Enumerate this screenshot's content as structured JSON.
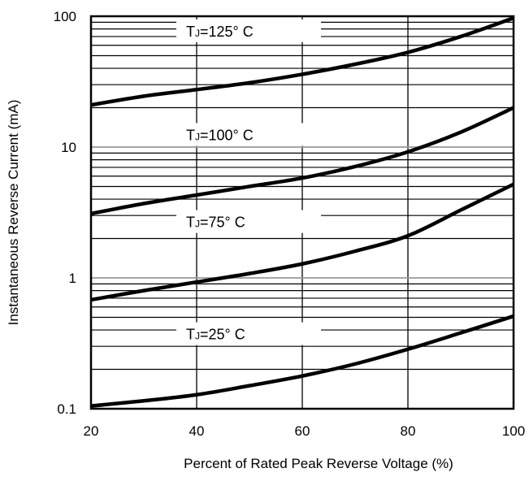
{
  "chart_data": {
    "type": "line",
    "xlabel": "Percent of Rated Peak Reverse Voltage (%)",
    "ylabel": "Instantaneous Reverse Current (mA)",
    "xlim": [
      20,
      100
    ],
    "ylim": [
      0.1,
      100
    ],
    "y_scale": "log",
    "grid": true,
    "x_ticks": [
      "20",
      "40",
      "60",
      "80",
      "100"
    ],
    "y_ticks": [
      "0.1",
      "1",
      "10",
      "100"
    ],
    "series": [
      {
        "name": "TJ=125° C",
        "label_main": "T",
        "label_sub": "J",
        "label_rest": "=125° C",
        "points": [
          [
            20,
            21
          ],
          [
            30,
            24.5
          ],
          [
            40,
            27.5
          ],
          [
            50,
            31
          ],
          [
            60,
            36
          ],
          [
            70,
            43
          ],
          [
            80,
            53
          ],
          [
            90,
            70
          ],
          [
            100,
            97
          ]
        ]
      },
      {
        "name": "TJ=100° C",
        "label_main": "T",
        "label_sub": "J",
        "label_rest": "=100° C",
        "points": [
          [
            20,
            3.1
          ],
          [
            30,
            3.7
          ],
          [
            40,
            4.3
          ],
          [
            50,
            5.0
          ],
          [
            60,
            5.8
          ],
          [
            70,
            7.1
          ],
          [
            80,
            9.2
          ],
          [
            90,
            13
          ],
          [
            100,
            20
          ]
        ]
      },
      {
        "name": "TJ=75° C",
        "label_main": "T",
        "label_sub": "J",
        "label_rest": "=75° C",
        "points": [
          [
            20,
            0.68
          ],
          [
            30,
            0.8
          ],
          [
            40,
            0.93
          ],
          [
            50,
            1.08
          ],
          [
            60,
            1.28
          ],
          [
            70,
            1.6
          ],
          [
            80,
            2.1
          ],
          [
            90,
            3.3
          ],
          [
            100,
            5.2
          ]
        ]
      },
      {
        "name": "TJ=25° C",
        "label_main": "T",
        "label_sub": "J",
        "label_rest": "=25° C",
        "points": [
          [
            20,
            0.105
          ],
          [
            30,
            0.115
          ],
          [
            40,
            0.128
          ],
          [
            50,
            0.15
          ],
          [
            60,
            0.178
          ],
          [
            70,
            0.22
          ],
          [
            80,
            0.285
          ],
          [
            90,
            0.38
          ],
          [
            100,
            0.51
          ]
        ]
      }
    ]
  }
}
